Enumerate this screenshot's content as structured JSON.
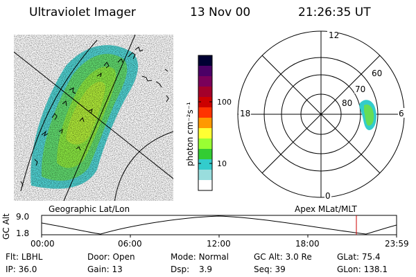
{
  "header": {
    "title": "Ultraviolet Imager",
    "date": "13 Nov 00",
    "time": "21:26:35 UT"
  },
  "colorbar": {
    "label": "photon cm⁻²s⁻¹",
    "ticks": [
      "100",
      "10"
    ],
    "colors": [
      "#000033",
      "#4b0066",
      "#7a005a",
      "#a3002a",
      "#cc0000",
      "#ff3300",
      "#ff9900",
      "#ffff33",
      "#99ff33",
      "#33cc33",
      "#33cccc",
      "#99dddd",
      "#ffffff"
    ]
  },
  "polar": {
    "labels": {
      "top": "12",
      "bottom": "0",
      "left": "18",
      "right": "6"
    },
    "lat_labels": [
      "60",
      "70",
      "80"
    ]
  },
  "orbit": {
    "left_label": "Geographic Lat/Lon",
    "right_label": "Apex MLat/MLT",
    "y_axis_label": "GC Alt",
    "y_ticks": [
      "9.0",
      "1.8"
    ],
    "x_ticks": [
      "00:00",
      "06:00",
      "12:00",
      "18:00",
      "23:59"
    ],
    "marker_color": "#cc0000"
  },
  "status": {
    "row1": [
      {
        "label": "Flt:",
        "value": "LBHL"
      },
      {
        "label": "Door:",
        "value": "Open"
      },
      {
        "label": "Mode:",
        "value": "Normal"
      },
      {
        "label": "GC Alt:",
        "value": "3.0 Re"
      },
      {
        "label": "GLat:",
        "value": "75.4"
      }
    ],
    "row2": [
      {
        "label": "IP:",
        "value": "36.0"
      },
      {
        "label": "Gain:",
        "value": "13"
      },
      {
        "label": "Dsp:",
        "value": "3.9"
      },
      {
        "label": "Seq:",
        "value": "39"
      },
      {
        "label": "GLon:",
        "value": "138.1"
      }
    ]
  }
}
